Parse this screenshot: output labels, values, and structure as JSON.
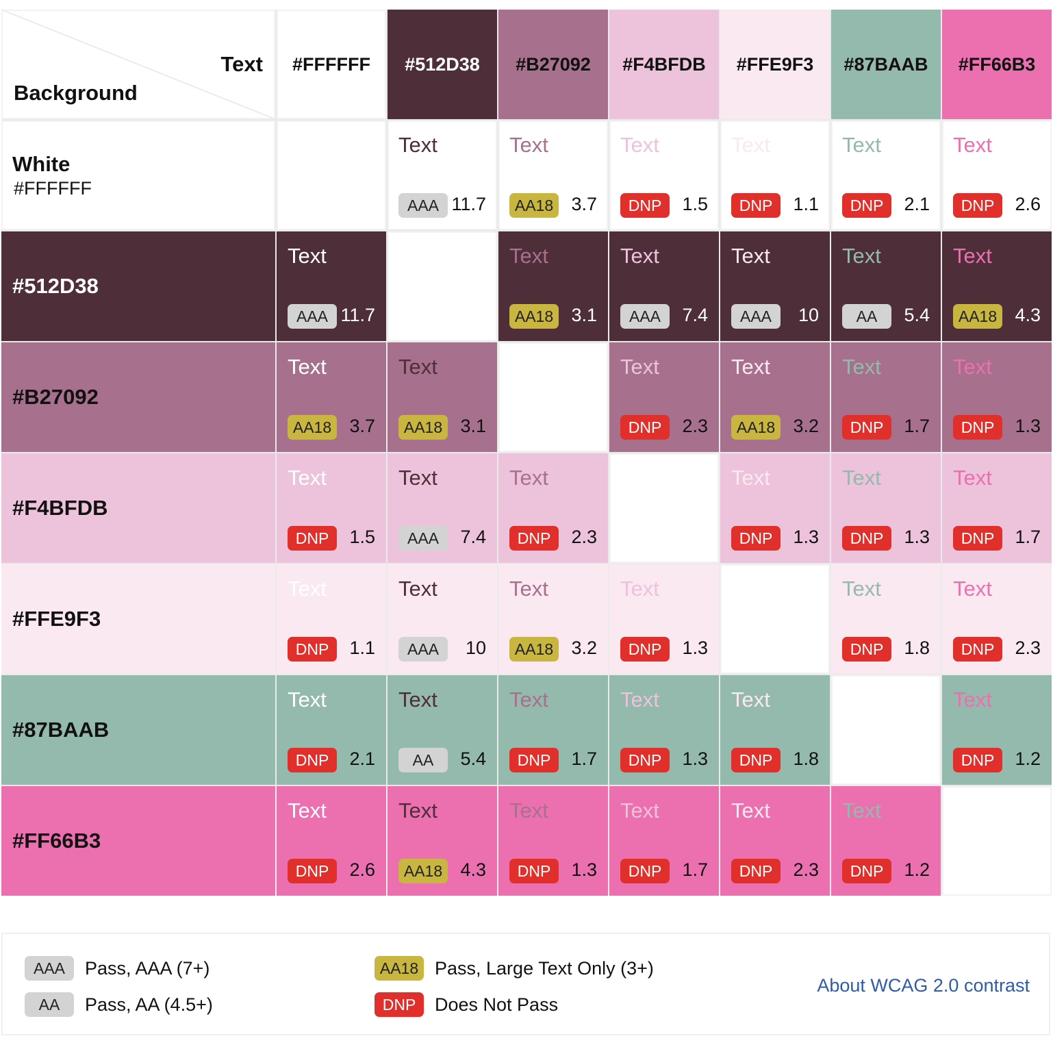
{
  "corner": {
    "text_label": "Text",
    "background_label": "Background"
  },
  "columns": [
    {
      "hex": "#FFFFFF",
      "color": "#FFFFFF"
    },
    {
      "hex": "#512D38",
      "color": "#4E2E39"
    },
    {
      "hex": "#B27092",
      "color": "#A7718D"
    },
    {
      "hex": "#F4BFDB",
      "color": "#ECC3DA"
    },
    {
      "hex": "#FFE9F3",
      "color": "#FBE9F1"
    },
    {
      "hex": "#87BAAB",
      "color": "#94B9AD"
    },
    {
      "hex": "#FF66B3",
      "color": "#EC70AF"
    }
  ],
  "rows": [
    {
      "name": "White",
      "hex": "#FFFFFF",
      "color": "#FFFFFF",
      "dark_label": false,
      "display": "White",
      "cells": [
        null,
        {
          "text": "Text",
          "badge": "AAA",
          "ratio": "11.7"
        },
        {
          "text": "Text",
          "badge": "AA18",
          "ratio": "3.7"
        },
        {
          "text": "Text",
          "badge": "DNP",
          "ratio": "1.5"
        },
        {
          "text": "Text",
          "badge": "DNP",
          "ratio": "1.1"
        },
        {
          "text": "Text",
          "badge": "DNP",
          "ratio": "2.1"
        },
        {
          "text": "Text",
          "badge": "DNP",
          "ratio": "2.6"
        }
      ]
    },
    {
      "name": "#512D38",
      "color": "#4E2E39",
      "dark_label": true,
      "cells": [
        {
          "text": "Text",
          "badge": "AAA",
          "ratio": "11.7"
        },
        null,
        {
          "text": "Text",
          "badge": "AA18",
          "ratio": "3.1"
        },
        {
          "text": "Text",
          "badge": "AAA",
          "ratio": "7.4"
        },
        {
          "text": "Text",
          "badge": "AAA",
          "ratio": "10"
        },
        {
          "text": "Text",
          "badge": "AA",
          "ratio": "5.4"
        },
        {
          "text": "Text",
          "badge": "AA18",
          "ratio": "4.3"
        }
      ]
    },
    {
      "name": "#B27092",
      "color": "#A7718D",
      "dark_label": false,
      "cells": [
        {
          "text": "Text",
          "badge": "AA18",
          "ratio": "3.7"
        },
        {
          "text": "Text",
          "badge": "AA18",
          "ratio": "3.1"
        },
        null,
        {
          "text": "Text",
          "badge": "DNP",
          "ratio": "2.3"
        },
        {
          "text": "Text",
          "badge": "AA18",
          "ratio": "3.2"
        },
        {
          "text": "Text",
          "badge": "DNP",
          "ratio": "1.7"
        },
        {
          "text": "Text",
          "badge": "DNP",
          "ratio": "1.3"
        }
      ]
    },
    {
      "name": "#F4BFDB",
      "color": "#ECC3DA",
      "dark_label": false,
      "cells": [
        {
          "text": "Text",
          "badge": "DNP",
          "ratio": "1.5"
        },
        {
          "text": "Text",
          "badge": "AAA",
          "ratio": "7.4"
        },
        {
          "text": "Text",
          "badge": "DNP",
          "ratio": "2.3"
        },
        null,
        {
          "text": "Text",
          "badge": "DNP",
          "ratio": "1.3"
        },
        {
          "text": "Text",
          "badge": "DNP",
          "ratio": "1.3"
        },
        {
          "text": "Text",
          "badge": "DNP",
          "ratio": "1.7"
        }
      ]
    },
    {
      "name": "#FFE9F3",
      "color": "#FBE9F1",
      "dark_label": false,
      "cells": [
        {
          "text": "Text",
          "badge": "DNP",
          "ratio": "1.1"
        },
        {
          "text": "Text",
          "badge": "AAA",
          "ratio": "10"
        },
        {
          "text": "Text",
          "badge": "AA18",
          "ratio": "3.2"
        },
        {
          "text": "Text",
          "badge": "DNP",
          "ratio": "1.3"
        },
        null,
        {
          "text": "Text",
          "badge": "DNP",
          "ratio": "1.8"
        },
        {
          "text": "Text",
          "badge": "DNP",
          "ratio": "2.3"
        }
      ]
    },
    {
      "name": "#87BAAB",
      "color": "#94B9AD",
      "dark_label": false,
      "cells": [
        {
          "text": "Text",
          "badge": "DNP",
          "ratio": "2.1"
        },
        {
          "text": "Text",
          "badge": "AA",
          "ratio": "5.4"
        },
        {
          "text": "Text",
          "badge": "DNP",
          "ratio": "1.7"
        },
        {
          "text": "Text",
          "badge": "DNP",
          "ratio": "1.3"
        },
        {
          "text": "Text",
          "badge": "DNP",
          "ratio": "1.8"
        },
        null,
        {
          "text": "Text",
          "badge": "DNP",
          "ratio": "1.2"
        }
      ]
    },
    {
      "name": "#FF66B3",
      "color": "#EC70AF",
      "dark_label": false,
      "cells": [
        {
          "text": "Text",
          "badge": "DNP",
          "ratio": "2.6"
        },
        {
          "text": "Text",
          "badge": "AA18",
          "ratio": "4.3"
        },
        {
          "text": "Text",
          "badge": "DNP",
          "ratio": "1.3"
        },
        {
          "text": "Text",
          "badge": "DNP",
          "ratio": "1.7"
        },
        {
          "text": "Text",
          "badge": "DNP",
          "ratio": "2.3"
        },
        {
          "text": "Text",
          "badge": "DNP",
          "ratio": "1.2"
        },
        null
      ]
    }
  ],
  "legend": {
    "items": [
      {
        "badge": "AAA",
        "text": "Pass, AAA (7+)"
      },
      {
        "badge": "AA",
        "text": "Pass, AA (4.5+)"
      },
      {
        "badge": "AA18",
        "text": "Pass, Large Text Only (3+)"
      },
      {
        "badge": "DNP",
        "text": "Does Not Pass"
      }
    ],
    "link_text": "About WCAG 2.0 contrast"
  }
}
